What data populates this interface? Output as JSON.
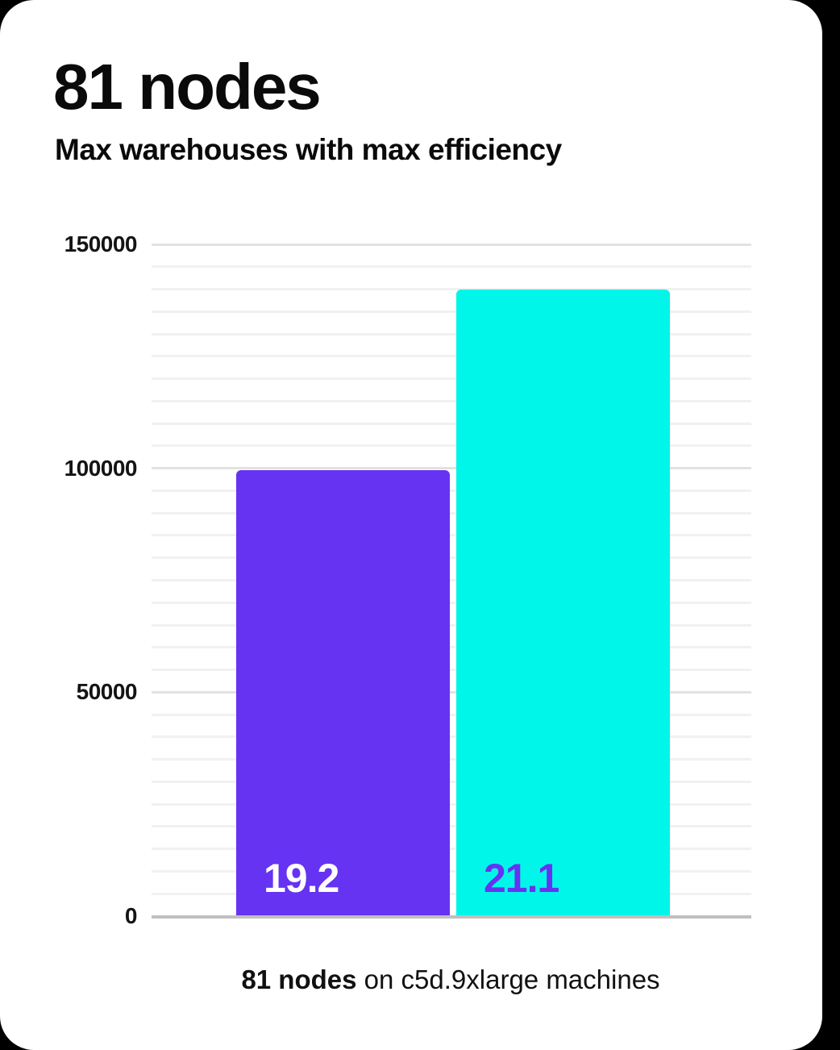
{
  "page": {
    "background_color": "#000000",
    "card_color": "#ffffff"
  },
  "header": {
    "title": "81 nodes",
    "subtitle": "Max warehouses with max efficiency"
  },
  "caption": {
    "bold": "81 nodes",
    "rest": " on c5d.9xlarge machines"
  },
  "chart_data": {
    "type": "bar",
    "title": "81 nodes",
    "subtitle": "Max warehouses with max efficiency",
    "xlabel": "",
    "ylabel": "",
    "ylim": [
      0,
      150000
    ],
    "yticks": [
      0,
      50000,
      100000,
      150000
    ],
    "ytick_labels": [
      "0",
      "50000",
      "100000",
      "150000"
    ],
    "minor_grid_step": 5000,
    "grid": true,
    "legend": "none",
    "categories": [
      "bar-1",
      "bar-2"
    ],
    "bars": [
      {
        "value": 99500,
        "data_label": "19.2",
        "color": "#6633f2",
        "label_color": "#ffffff"
      },
      {
        "value": 140000,
        "data_label": "21.1",
        "color": "#00f6e9",
        "label_color": "#6633f2"
      }
    ],
    "footnote": "81 nodes on c5d.9xlarge machines"
  }
}
